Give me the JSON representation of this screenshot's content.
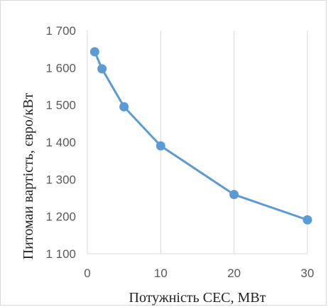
{
  "chart_data": {
    "type": "line",
    "title": "",
    "xlabel": "Потужність СЕС, МВт",
    "ylabel": "Питомаи вартість, євро/кВт",
    "xlim": [
      0,
      30
    ],
    "ylim": [
      1100,
      1700
    ],
    "x_ticks": [
      0,
      10,
      20,
      30
    ],
    "y_ticks": [
      1100,
      1200,
      1300,
      1400,
      1500,
      1600,
      1700
    ],
    "x_tick_labels": [
      "0",
      "10",
      "20",
      "30"
    ],
    "y_tick_labels": [
      "1 100",
      "1 200",
      "1 300",
      "1 400",
      "1 500",
      "1 600",
      "1 700"
    ],
    "grid": "vertical",
    "series": [
      {
        "x": [
          1,
          2,
          5,
          10,
          20,
          30
        ],
        "y": [
          1643,
          1597,
          1495,
          1390,
          1259,
          1191
        ]
      }
    ],
    "colors": {
      "series": "#5b9bd5",
      "grid": "#d9d9d9",
      "tick_text": "#595959",
      "axis_title": "#222222"
    }
  }
}
